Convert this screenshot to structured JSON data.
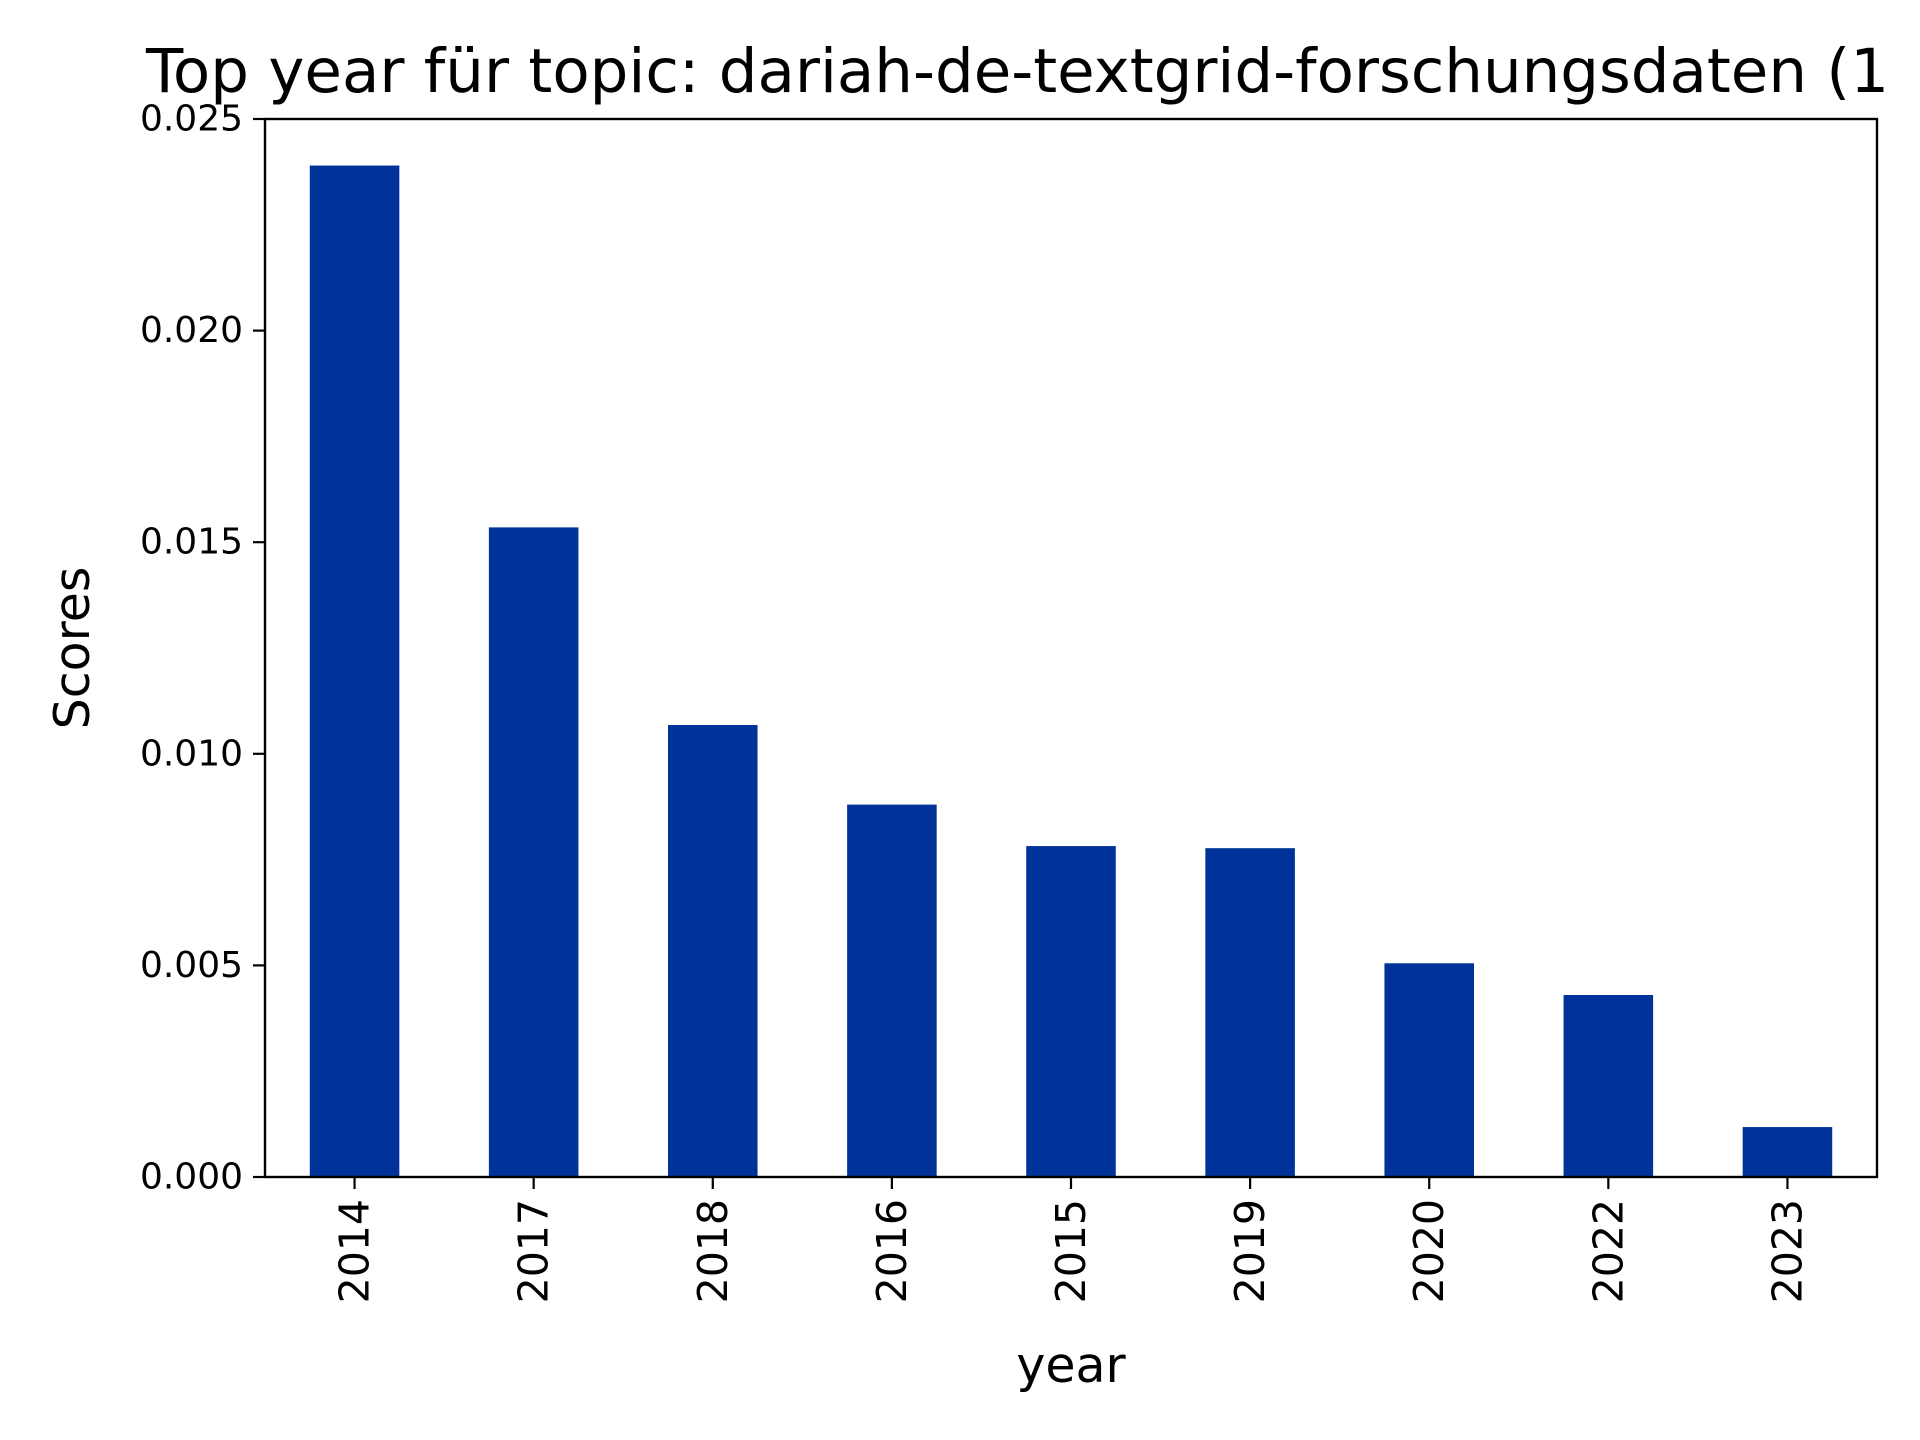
{
  "chart_data": {
    "type": "bar",
    "title": "Top year für topic: dariah-de-textgrid-forschungsdaten (1",
    "xlabel": "year",
    "ylabel": "Scores",
    "categories": [
      "2014",
      "2017",
      "2018",
      "2016",
      "2015",
      "2019",
      "2020",
      "2022",
      "2023"
    ],
    "values": [
      0.0239,
      0.01535,
      0.01068,
      0.0088,
      0.00782,
      0.00777,
      0.00505,
      0.0043,
      0.00118
    ],
    "ylim": [
      0,
      0.025
    ],
    "yticks": [
      "0.000",
      "0.005",
      "0.010",
      "0.015",
      "0.020",
      "0.025"
    ],
    "bar_color": "#003399",
    "grid": false,
    "legend": "none"
  }
}
